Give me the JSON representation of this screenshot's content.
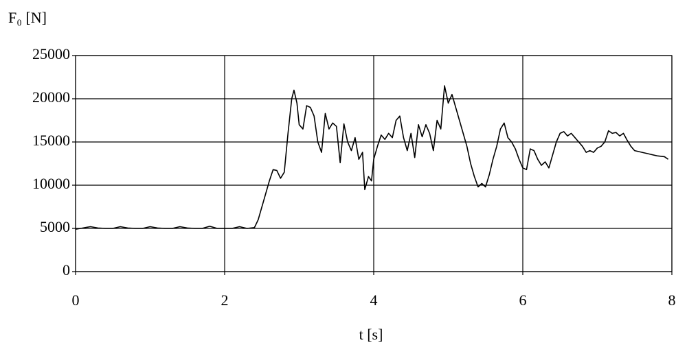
{
  "chart_data": {
    "type": "line",
    "x_label": "t [s]",
    "y_label": "F₀ [N]",
    "x": [
      0,
      0.1,
      0.2,
      0.3,
      0.4,
      0.5,
      0.6,
      0.7,
      0.8,
      0.9,
      1.0,
      1.1,
      1.2,
      1.3,
      1.4,
      1.5,
      1.6,
      1.7,
      1.8,
      1.9,
      2.0,
      2.1,
      2.2,
      2.3,
      2.4,
      2.45,
      2.5,
      2.55,
      2.6,
      2.65,
      2.7,
      2.75,
      2.8,
      2.85,
      2.9,
      2.93,
      2.97,
      3.0,
      3.05,
      3.1,
      3.15,
      3.2,
      3.25,
      3.3,
      3.35,
      3.4,
      3.45,
      3.5,
      3.55,
      3.6,
      3.65,
      3.7,
      3.75,
      3.8,
      3.85,
      3.88,
      3.93,
      3.97,
      4.0,
      4.05,
      4.1,
      4.15,
      4.2,
      4.25,
      4.3,
      4.35,
      4.4,
      4.45,
      4.5,
      4.55,
      4.6,
      4.65,
      4.7,
      4.75,
      4.8,
      4.85,
      4.9,
      4.95,
      5.0,
      5.05,
      5.1,
      5.15,
      5.2,
      5.25,
      5.3,
      5.35,
      5.4,
      5.45,
      5.5,
      5.55,
      5.6,
      5.65,
      5.7,
      5.75,
      5.8,
      5.85,
      5.9,
      5.95,
      6.0,
      6.05,
      6.1,
      6.15,
      6.2,
      6.25,
      6.3,
      6.35,
      6.4,
      6.45,
      6.5,
      6.55,
      6.6,
      6.65,
      6.7,
      6.75,
      6.8,
      6.85,
      6.9,
      6.95,
      7.0,
      7.05,
      7.1,
      7.15,
      7.2,
      7.25,
      7.3,
      7.35,
      7.4,
      7.45,
      7.5,
      7.6,
      7.7,
      7.8,
      7.9,
      7.95
    ],
    "series": [
      {
        "color": "#000000",
        "values": [
          4900,
          5050,
          5200,
          5050,
          5000,
          5000,
          5200,
          5050,
          5000,
          5000,
          5200,
          5050,
          5000,
          5000,
          5200,
          5050,
          5000,
          5000,
          5250,
          5000,
          5000,
          5000,
          5200,
          5000,
          5100,
          6000,
          7500,
          9000,
          10500,
          11800,
          11700,
          10800,
          11500,
          16000,
          20000,
          21000,
          19500,
          17000,
          16500,
          19200,
          19000,
          18000,
          15000,
          13800,
          18300,
          16500,
          17200,
          16800,
          12600,
          17100,
          15000,
          14000,
          15500,
          13000,
          13800,
          9500,
          11000,
          10500,
          13000,
          14500,
          15800,
          15300,
          16000,
          15500,
          17500,
          18000,
          15500,
          14000,
          16000,
          13200,
          17000,
          15600,
          17000,
          16000,
          14000,
          17500,
          16500,
          21500,
          19500,
          20500,
          19000,
          17500,
          16000,
          14500,
          12500,
          11000,
          9800,
          10200,
          9800,
          11200,
          13000,
          14500,
          16500,
          17200,
          15500,
          15000,
          14200,
          13000,
          12000,
          11800,
          14200,
          14000,
          13000,
          12300,
          12700,
          12000,
          13500,
          15000,
          16000,
          16200,
          15700,
          16000,
          15500,
          15000,
          14500,
          13800,
          14000,
          13800,
          14300,
          14500,
          15000,
          16300,
          16000,
          16100,
          15700,
          16000,
          15200,
          14500,
          14000,
          13800,
          13600,
          13400,
          13300,
          13000
        ]
      }
    ],
    "xlim": [
      0,
      8
    ],
    "xticks": [
      0,
      2,
      4,
      6,
      8
    ],
    "ylim": [
      0,
      25000
    ],
    "yticks": [
      0,
      5000,
      10000,
      15000,
      20000,
      25000
    ],
    "grid": true
  }
}
